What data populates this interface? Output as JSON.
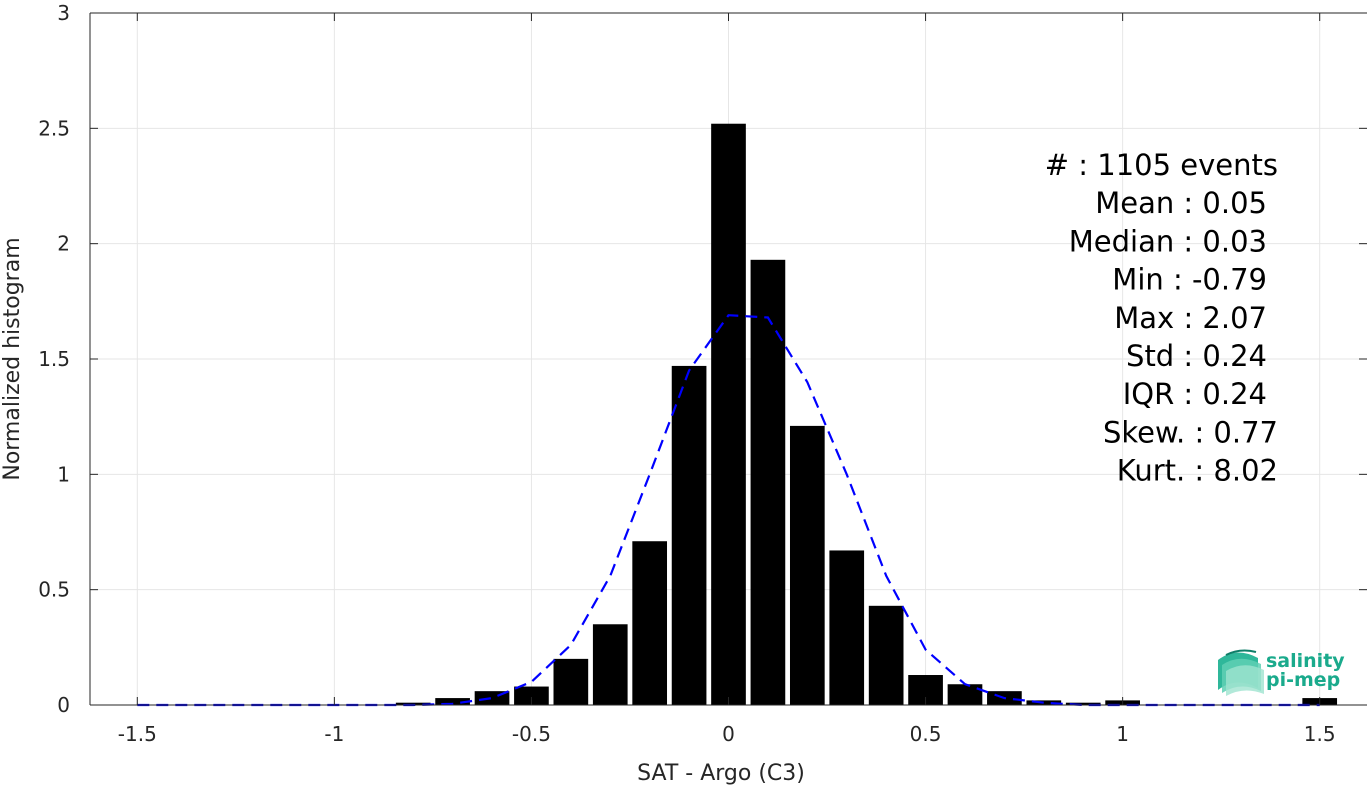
{
  "chart_data": {
    "type": "bar",
    "xlabel": "SAT - Argo (C3)",
    "ylabel": "Normalized histogram",
    "xlim": [
      -1.62,
      1.62
    ],
    "ylim": [
      0,
      3
    ],
    "grid": true,
    "xticks": [
      -1.5,
      -1,
      -0.5,
      0,
      0.5,
      1,
      1.5
    ],
    "xtick_labels": [
      "-1.5",
      "-1",
      "-0.5",
      "0",
      "0.5",
      "1",
      "1.5"
    ],
    "yticks": [
      0,
      0.5,
      1,
      1.5,
      2,
      2.5,
      3
    ],
    "ytick_labels": [
      "0",
      "0.5",
      "1",
      "1.5",
      "2",
      "2.5",
      "3"
    ],
    "bin_width": 0.1,
    "bars": {
      "x": [
        -0.8,
        -0.7,
        -0.6,
        -0.5,
        -0.4,
        -0.3,
        -0.2,
        -0.1,
        0.0,
        0.1,
        0.2,
        0.3,
        0.4,
        0.5,
        0.6,
        0.7,
        0.8,
        0.9,
        1.0,
        1.5
      ],
      "values": [
        0.01,
        0.03,
        0.06,
        0.08,
        0.2,
        0.35,
        0.71,
        1.47,
        2.52,
        1.93,
        1.21,
        0.67,
        0.43,
        0.13,
        0.09,
        0.06,
        0.02,
        0.01,
        0.02,
        0.03
      ],
      "color": "#000000"
    },
    "fit": {
      "style": "dashed",
      "color": "#0000ff",
      "x": [
        -1.5,
        -1.4,
        -1.3,
        -1.2,
        -1.1,
        -1.0,
        -0.9,
        -0.8,
        -0.7,
        -0.6,
        -0.5,
        -0.4,
        -0.3,
        -0.2,
        -0.1,
        0.0,
        0.1,
        0.2,
        0.3,
        0.4,
        0.5,
        0.6,
        0.7,
        0.8,
        0.9,
        1.0,
        1.1,
        1.2,
        1.3,
        1.4,
        1.5
      ],
      "y": [
        0,
        0,
        0,
        0,
        0,
        0,
        0,
        0,
        0.005,
        0.03,
        0.1,
        0.26,
        0.56,
        1.0,
        1.45,
        1.69,
        1.68,
        1.4,
        1.0,
        0.56,
        0.24,
        0.09,
        0.03,
        0.01,
        0,
        0,
        0,
        0,
        0,
        0,
        0
      ]
    },
    "stats": [
      "#  : 1105 events",
      "Mean : 0.05",
      "Median : 0.03",
      "Min : -0.79",
      "Max : 2.07",
      "Std : 0.24",
      "IQR : 0.24",
      "Skew. : 0.77",
      "Kurt. : 8.02"
    ]
  },
  "logo": {
    "line1": "salinity",
    "line2": "pi-mep",
    "color": "#1aaa8c"
  }
}
